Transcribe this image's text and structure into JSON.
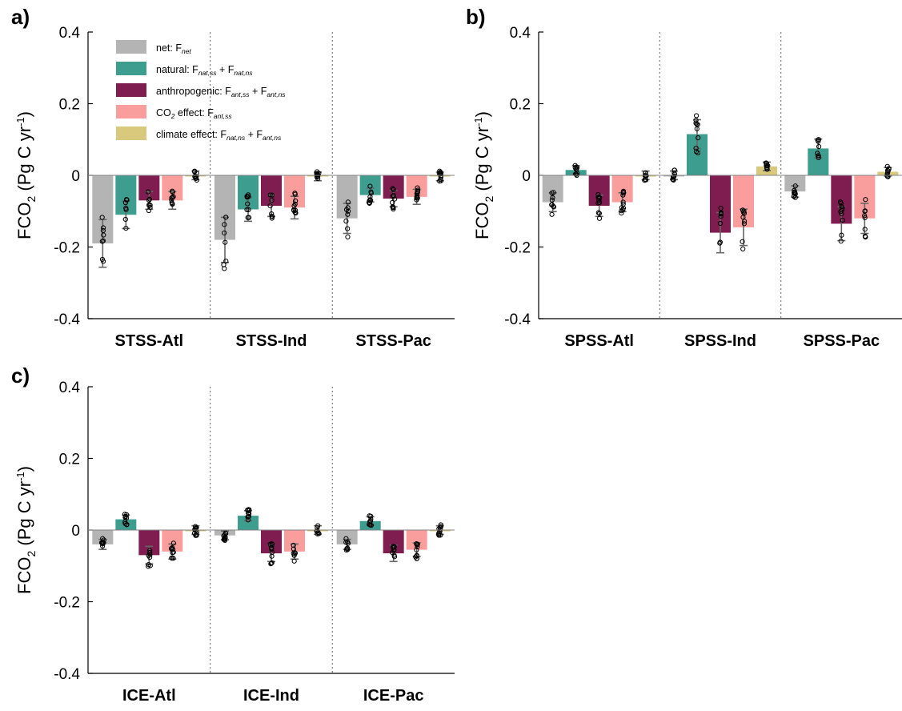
{
  "colors": {
    "net": "#b4b4b4",
    "natural": "#3d9e8f",
    "anthropogenic": "#7f1d51",
    "co2": "#f99e9c",
    "climate": "#d8c97d",
    "errorbar": "#666666",
    "separator": "#7f7f7f"
  },
  "legend": [
    {
      "key": "net",
      "text": "net: F",
      "sub": "net",
      "text2": "",
      "sub2": ""
    },
    {
      "key": "natural",
      "text": "natural: F",
      "sub": "nat,ss",
      "text2": " + F",
      "sub2": "nat,ns"
    },
    {
      "key": "anthropogenic",
      "text": "anthropogenic: F",
      "sub": "ant,ss",
      "text2": " + F",
      "sub2": "ant,ns"
    },
    {
      "key": "co2",
      "text": "CO",
      "sub": "2",
      "text2": " effect: F",
      "sub2": "ant,ss"
    },
    {
      "key": "climate",
      "text": "climate effect: F",
      "sub": "nat,ns",
      "text2": " + F",
      "sub2": "ant,ns"
    }
  ],
  "chart_data": [
    {
      "type": "bar",
      "panel_label": "a)",
      "ylabel_main": "FCO",
      "ylabel_sub": "2",
      "ylabel_rest": " (Pg C yr",
      "ylabel_sup": "-1",
      "ylabel_end": ")",
      "ylim": [
        -0.4,
        0.4
      ],
      "yticks": [
        "-0.4",
        "-0.2",
        "0",
        "0.2",
        "0.4"
      ],
      "categories": [
        "STSS-Atl",
        "STSS-Ind",
        "STSS-Pac"
      ],
      "series": [
        {
          "name": "net: F_net",
          "key": "net",
          "values": [
            -0.19,
            -0.18,
            -0.12
          ]
        },
        {
          "name": "natural: F_nat,ss + F_nat,ns",
          "key": "natural",
          "values": [
            -0.11,
            -0.095,
            -0.055
          ]
        },
        {
          "name": "anthropogenic: F_ant,ss + F_ant,ns",
          "key": "anthropogenic",
          "values": [
            -0.07,
            -0.085,
            -0.065
          ]
        },
        {
          "name": "CO2 effect: F_ant,ss",
          "key": "co2",
          "values": [
            -0.07,
            -0.09,
            -0.06
          ]
        },
        {
          "name": "climate effect: F_nat,ns + F_ant,ns",
          "key": "climate",
          "values": [
            0.0,
            -0.003,
            -0.003
          ]
        }
      ]
    },
    {
      "type": "bar",
      "panel_label": "b)",
      "ylabel_main": "FCO",
      "ylabel_sub": "2",
      "ylabel_rest": " (Pg C yr",
      "ylabel_sup": "-1",
      "ylabel_end": ")",
      "ylim": [
        -0.4,
        0.4
      ],
      "yticks": [
        "-0.4",
        "-0.2",
        "0",
        "0.2",
        "0.4"
      ],
      "categories": [
        "SPSS-Atl",
        "SPSS-Ind",
        "SPSS-Pac"
      ],
      "series": [
        {
          "name": "net: F_net",
          "key": "net",
          "values": [
            -0.075,
            0.0,
            -0.045
          ]
        },
        {
          "name": "natural: F_nat,ss + F_nat,ns",
          "key": "natural",
          "values": [
            0.015,
            0.115,
            0.075
          ]
        },
        {
          "name": "anthropogenic: F_ant,ss + F_ant,ns",
          "key": "anthropogenic",
          "values": [
            -0.085,
            -0.16,
            -0.135
          ]
        },
        {
          "name": "CO2 effect: F_ant,ss",
          "key": "co2",
          "values": [
            -0.075,
            -0.145,
            -0.12
          ]
        },
        {
          "name": "climate effect: F_nat,ns + F_ant,ns",
          "key": "climate",
          "values": [
            0.0,
            0.025,
            0.01
          ]
        }
      ]
    },
    {
      "type": "bar",
      "panel_label": "c)",
      "ylabel_main": "FCO",
      "ylabel_sub": "2",
      "ylabel_rest": " (Pg C yr",
      "ylabel_sup": "-1",
      "ylabel_end": ")",
      "ylim": [
        -0.4,
        0.4
      ],
      "yticks": [
        "-0.4",
        "-0.2",
        "0",
        "0.2",
        "0.4"
      ],
      "categories": [
        "ICE-Atl",
        "ICE-Ind",
        "ICE-Pac"
      ],
      "series": [
        {
          "name": "net: F_net",
          "key": "net",
          "values": [
            -0.04,
            -0.015,
            -0.04
          ]
        },
        {
          "name": "natural: F_nat,ss + F_nat,ns",
          "key": "natural",
          "values": [
            0.03,
            0.04,
            0.025
          ]
        },
        {
          "name": "anthropogenic: F_ant,ss + F_ant,ns",
          "key": "anthropogenic",
          "values": [
            -0.07,
            -0.065,
            -0.065
          ]
        },
        {
          "name": "CO2 effect: F_ant,ss",
          "key": "co2",
          "values": [
            -0.06,
            -0.06,
            -0.055
          ]
        },
        {
          "name": "climate effect: F_nat,ns + F_ant,ns",
          "key": "climate",
          "values": [
            0.0,
            0.0,
            0.0
          ]
        }
      ]
    }
  ]
}
